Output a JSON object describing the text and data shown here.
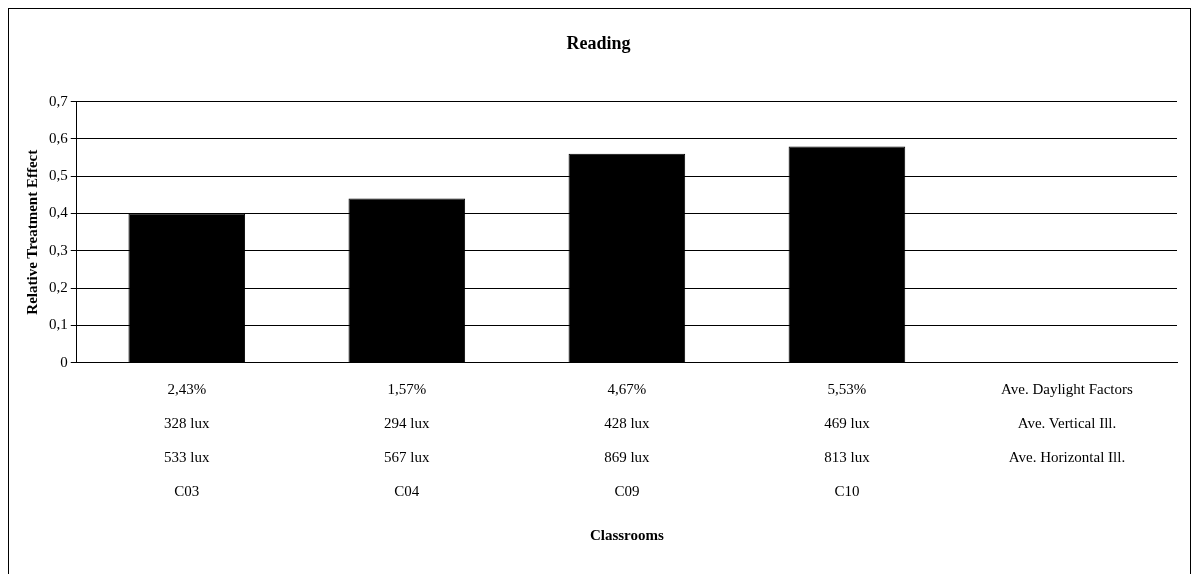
{
  "chart_data": {
    "type": "bar",
    "title": "Reading",
    "annotations": [
      "Classrooms"
    ],
    "ylabel": "Relative Treatment Effect",
    "categories": [
      "2,43%\n328 lux\n533 lux\nC03",
      "1,57%\n294 lux\n567 lux\nC04",
      "4,67%\n428 lux\n869 lux\nC09",
      "5,53%\n469 lux\n813 lux\nC10",
      "Ave. Daylight Factors\nAve. Vertical Ill.\nAve. Horizontal Ill.\n "
    ],
    "values": [
      0.4,
      0.44,
      0.56,
      0.58,
      null
    ],
    "color": "#000000",
    "ylim": [
      0,
      0.7
    ],
    "yticks": [
      0,
      {
        "value": 0.1,
        "label": "0,1"
      },
      {
        "value": 0.2,
        "label": "0,2"
      },
      {
        "value": 0.3,
        "label": "0,3"
      },
      {
        "value": 0.4,
        "label": "0,4"
      },
      {
        "value": 0.5,
        "label": "0,5"
      },
      {
        "value": 0.6,
        "label": "0,6"
      },
      {
        "value": 0.7,
        "label": "0,7"
      }
    ],
    "grid": "y",
    "legend": false
  }
}
